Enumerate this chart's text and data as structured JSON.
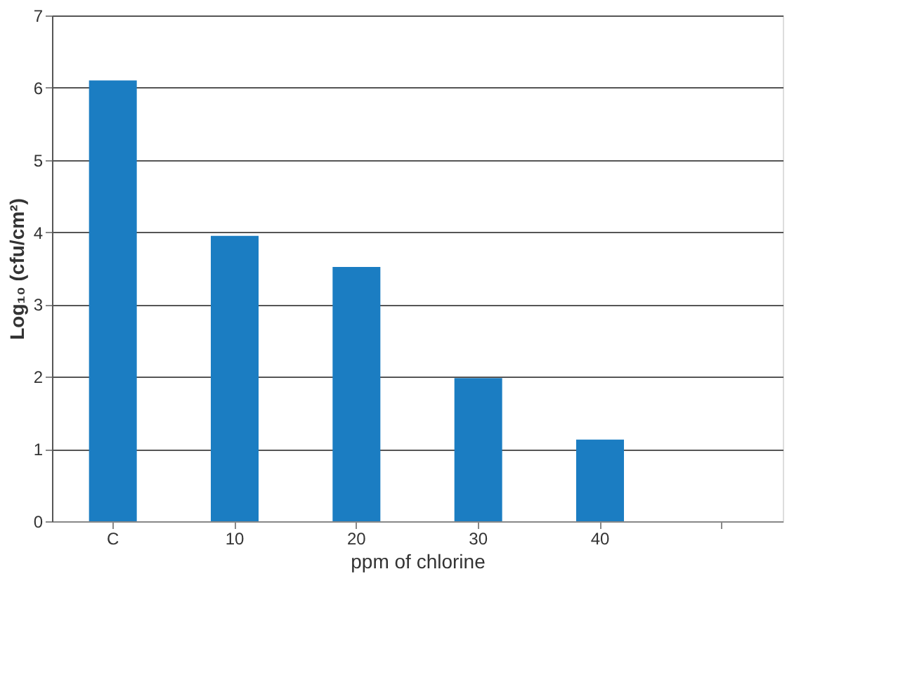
{
  "chart_data": {
    "type": "bar",
    "xlabel": "ppm of chlorine",
    "ylabel": "Log₁₀ (cfu/cm²)",
    "categories": [
      "C",
      "10",
      "20",
      "30",
      "40",
      null
    ],
    "values": [
      6.1,
      3.95,
      3.52,
      1.98,
      1.13,
      null
    ],
    "color": "#1b7dc2",
    "ylim": [
      0,
      7
    ],
    "yticks": [
      0,
      1,
      2,
      3,
      4,
      5,
      6,
      7
    ],
    "grid": "y"
  }
}
